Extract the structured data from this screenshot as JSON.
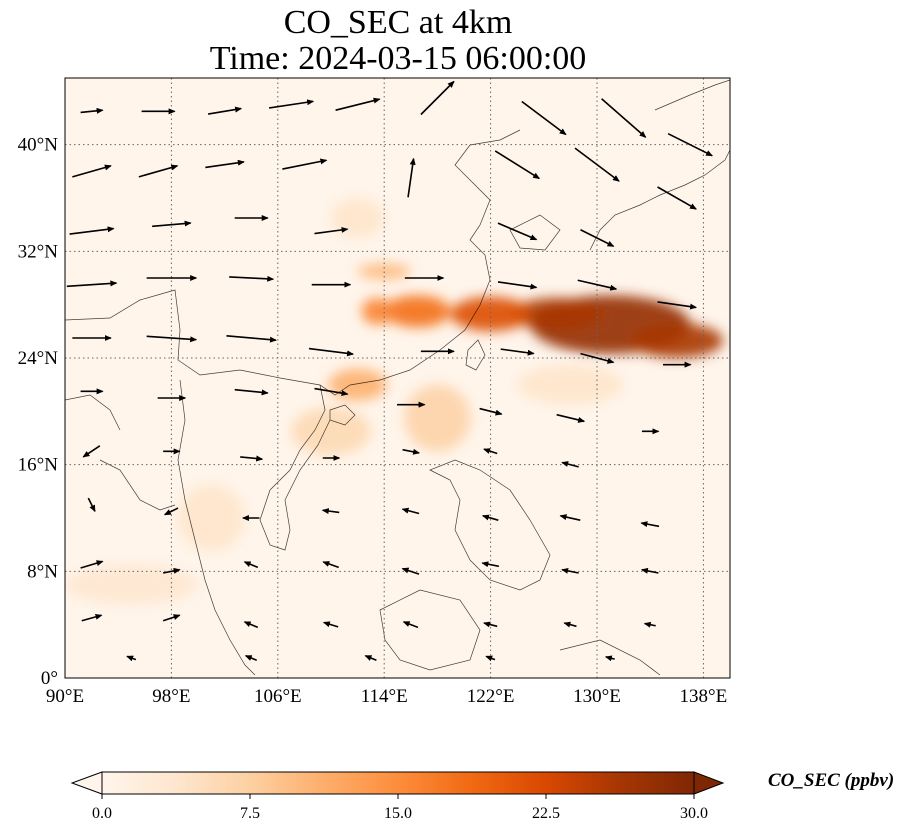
{
  "title": {
    "line1": "CO_SEC at 4km",
    "line2": "Time: 2024-03-15 06:00:00"
  },
  "map": {
    "extent": {
      "lon_min": 90,
      "lon_max": 140,
      "lat_min": 0,
      "lat_max": 45
    },
    "lon_ticks": [
      {
        "value": 90,
        "label": "90°E"
      },
      {
        "value": 98,
        "label": "98°E"
      },
      {
        "value": 106,
        "label": "106°E"
      },
      {
        "value": 114,
        "label": "114°E"
      },
      {
        "value": 122,
        "label": "122°E"
      },
      {
        "value": 130,
        "label": "130°E"
      },
      {
        "value": 138,
        "label": "138°E"
      }
    ],
    "lat_ticks": [
      {
        "value": 0,
        "label": "0°"
      },
      {
        "value": 8,
        "label": "8°N"
      },
      {
        "value": 16,
        "label": "16°N"
      },
      {
        "value": 24,
        "label": "24°N"
      },
      {
        "value": 32,
        "label": "32°N"
      },
      {
        "value": 40,
        "label": "40°N"
      }
    ],
    "gridlines": "dotted",
    "background_color": "#fff5eb",
    "concentration_blobs": [
      {
        "lon": 131,
        "lat": 26.5,
        "rlon": 6,
        "rlat": 2.2,
        "value": 28
      },
      {
        "lon": 127,
        "lat": 27.3,
        "rlon": 3.5,
        "rlat": 1.2,
        "value": 26
      },
      {
        "lon": 136,
        "lat": 25.3,
        "rlon": 3.5,
        "rlat": 1.3,
        "value": 26
      },
      {
        "lon": 122,
        "lat": 27.3,
        "rlon": 3,
        "rlat": 1.3,
        "value": 22
      },
      {
        "lon": 116.5,
        "lat": 27.5,
        "rlon": 2.5,
        "rlat": 1.2,
        "value": 18
      },
      {
        "lon": 113.5,
        "lat": 27.5,
        "rlon": 1.2,
        "rlat": 1.0,
        "value": 16
      },
      {
        "lon": 114,
        "lat": 30.5,
        "rlon": 2,
        "rlat": 0.6,
        "value": 10
      },
      {
        "lon": 112,
        "lat": 22,
        "rlon": 2.2,
        "rlat": 1.2,
        "value": 11
      },
      {
        "lon": 118,
        "lat": 19.5,
        "rlon": 2.5,
        "rlat": 2.5,
        "value": 7
      },
      {
        "lon": 110,
        "lat": 18.5,
        "rlon": 3,
        "rlat": 1.8,
        "value": 6
      },
      {
        "lon": 112,
        "lat": 34.5,
        "rlon": 2,
        "rlat": 1.5,
        "value": 4
      },
      {
        "lon": 101,
        "lat": 12,
        "rlon": 2.5,
        "rlat": 2.5,
        "value": 4
      },
      {
        "lon": 95,
        "lat": 7,
        "rlon": 5,
        "rlat": 1.5,
        "value": 3.5
      },
      {
        "lon": 128,
        "lat": 22,
        "rlon": 4,
        "rlat": 1.5,
        "value": 4
      }
    ],
    "wind_vectors": [
      {
        "lon": 92,
        "lat": 42.5,
        "u": 2,
        "v": 0.2
      },
      {
        "lon": 97,
        "lat": 42.5,
        "u": 3,
        "v": 0
      },
      {
        "lon": 102,
        "lat": 42.5,
        "u": 3,
        "v": 0.5
      },
      {
        "lon": 107,
        "lat": 43,
        "u": 4,
        "v": 0.6
      },
      {
        "lon": 112,
        "lat": 43,
        "u": 4,
        "v": 1
      },
      {
        "lon": 118,
        "lat": 43.5,
        "u": 3,
        "v": 3
      },
      {
        "lon": 126,
        "lat": 42,
        "u": 4,
        "v": -3
      },
      {
        "lon": 132,
        "lat": 42,
        "u": 4,
        "v": -3.5
      },
      {
        "lon": 137,
        "lat": 40,
        "u": 4,
        "v": -2
      },
      {
        "lon": 92,
        "lat": 38,
        "u": 3.5,
        "v": 1
      },
      {
        "lon": 97,
        "lat": 38,
        "u": 3.5,
        "v": 1
      },
      {
        "lon": 102,
        "lat": 38.5,
        "u": 3.5,
        "v": 0.5
      },
      {
        "lon": 108,
        "lat": 38.5,
        "u": 4,
        "v": 0.8
      },
      {
        "lon": 116,
        "lat": 37.5,
        "u": 0.5,
        "v": 3.5
      },
      {
        "lon": 124,
        "lat": 38.5,
        "u": 4,
        "v": -2.5
      },
      {
        "lon": 130,
        "lat": 38.5,
        "u": 4,
        "v": -3
      },
      {
        "lon": 136,
        "lat": 36,
        "u": 3.5,
        "v": -2
      },
      {
        "lon": 92,
        "lat": 33.5,
        "u": 4,
        "v": 0.5
      },
      {
        "lon": 98,
        "lat": 34,
        "u": 3.5,
        "v": 0.3
      },
      {
        "lon": 104,
        "lat": 34.5,
        "u": 3,
        "v": 0
      },
      {
        "lon": 110,
        "lat": 33.5,
        "u": 3,
        "v": 0.4
      },
      {
        "lon": 124,
        "lat": 33.5,
        "u": 3.5,
        "v": -1.5
      },
      {
        "lon": 130,
        "lat": 33,
        "u": 3,
        "v": -1.5
      },
      {
        "lon": 92,
        "lat": 29.5,
        "u": 4.5,
        "v": 0.3
      },
      {
        "lon": 98,
        "lat": 30,
        "u": 4.5,
        "v": 0
      },
      {
        "lon": 104,
        "lat": 30,
        "u": 4,
        "v": -0.2
      },
      {
        "lon": 110,
        "lat": 29.5,
        "u": 3.5,
        "v": 0
      },
      {
        "lon": 117,
        "lat": 30,
        "u": 3.5,
        "v": 0
      },
      {
        "lon": 124,
        "lat": 29.5,
        "u": 3.5,
        "v": -0.5
      },
      {
        "lon": 130,
        "lat": 29.5,
        "u": 3.5,
        "v": -0.8
      },
      {
        "lon": 136,
        "lat": 28,
        "u": 3.5,
        "v": -0.5
      },
      {
        "lon": 92,
        "lat": 25.5,
        "u": 3.5,
        "v": 0
      },
      {
        "lon": 98,
        "lat": 25.5,
        "u": 4.5,
        "v": -0.3
      },
      {
        "lon": 104,
        "lat": 25.5,
        "u": 4.5,
        "v": -0.4
      },
      {
        "lon": 110,
        "lat": 24.5,
        "u": 4,
        "v": -0.5
      },
      {
        "lon": 118,
        "lat": 24.5,
        "u": 3,
        "v": 0
      },
      {
        "lon": 124,
        "lat": 24.5,
        "u": 3,
        "v": -0.4
      },
      {
        "lon": 130,
        "lat": 24,
        "u": 3,
        "v": -0.8
      },
      {
        "lon": 136,
        "lat": 23.5,
        "u": 2.5,
        "v": 0
      },
      {
        "lon": 92,
        "lat": 21.5,
        "u": 2,
        "v": 0
      },
      {
        "lon": 98,
        "lat": 21,
        "u": 2.5,
        "v": 0
      },
      {
        "lon": 104,
        "lat": 21.5,
        "u": 3,
        "v": -0.3
      },
      {
        "lon": 110,
        "lat": 21.5,
        "u": 3,
        "v": -0.5
      },
      {
        "lon": 116,
        "lat": 20.5,
        "u": 2.5,
        "v": 0
      },
      {
        "lon": 122,
        "lat": 20,
        "u": 2,
        "v": -0.5
      },
      {
        "lon": 128,
        "lat": 19.5,
        "u": 2.5,
        "v": -0.6
      },
      {
        "lon": 134,
        "lat": 18.5,
        "u": 1.5,
        "v": 0
      },
      {
        "lon": 92,
        "lat": 17,
        "u": -1.5,
        "v": -1
      },
      {
        "lon": 98,
        "lat": 17,
        "u": 1.5,
        "v": 0
      },
      {
        "lon": 104,
        "lat": 16.5,
        "u": 2,
        "v": -0.2
      },
      {
        "lon": 110,
        "lat": 16.5,
        "u": 1.5,
        "v": 0
      },
      {
        "lon": 116,
        "lat": 17,
        "u": 1.5,
        "v": -0.3
      },
      {
        "lon": 122,
        "lat": 17,
        "u": -1.2,
        "v": 0.4
      },
      {
        "lon": 128,
        "lat": 16,
        "u": -1.5,
        "v": 0.4
      },
      {
        "lon": 92,
        "lat": 13,
        "u": 0.6,
        "v": -1.2
      },
      {
        "lon": 98,
        "lat": 12.5,
        "u": -1.2,
        "v": -0.6
      },
      {
        "lon": 104,
        "lat": 12,
        "u": -1.5,
        "v": 0
      },
      {
        "lon": 110,
        "lat": 12.5,
        "u": -1.5,
        "v": 0.2
      },
      {
        "lon": 116,
        "lat": 12.5,
        "u": -1.5,
        "v": 0.4
      },
      {
        "lon": 122,
        "lat": 12,
        "u": -1.4,
        "v": 0.4
      },
      {
        "lon": 128,
        "lat": 12,
        "u": -1.8,
        "v": 0.4
      },
      {
        "lon": 134,
        "lat": 11.5,
        "u": -1.6,
        "v": 0.3
      },
      {
        "lon": 92,
        "lat": 8.5,
        "u": 2,
        "v": 0.6
      },
      {
        "lon": 98,
        "lat": 8,
        "u": 1.5,
        "v": 0.3
      },
      {
        "lon": 104,
        "lat": 8.5,
        "u": -1.2,
        "v": 0.5
      },
      {
        "lon": 110,
        "lat": 8.5,
        "u": -1.4,
        "v": 0.5
      },
      {
        "lon": 116,
        "lat": 8,
        "u": -1.5,
        "v": 0.5
      },
      {
        "lon": 122,
        "lat": 8.5,
        "u": -1.5,
        "v": 0.3
      },
      {
        "lon": 128,
        "lat": 8,
        "u": -1.5,
        "v": 0.3
      },
      {
        "lon": 134,
        "lat": 8,
        "u": -1.5,
        "v": 0.3
      },
      {
        "lon": 92,
        "lat": 4.5,
        "u": 1.8,
        "v": 0.5
      },
      {
        "lon": 98,
        "lat": 4.5,
        "u": 1.5,
        "v": 0.5
      },
      {
        "lon": 104,
        "lat": 4,
        "u": -1.2,
        "v": 0.5
      },
      {
        "lon": 110,
        "lat": 4,
        "u": -1.3,
        "v": 0.4
      },
      {
        "lon": 116,
        "lat": 4,
        "u": -1.3,
        "v": 0.5
      },
      {
        "lon": 122,
        "lat": 4,
        "u": -1.2,
        "v": 0.3
      },
      {
        "lon": 128,
        "lat": 4,
        "u": -1.1,
        "v": 0.3
      },
      {
        "lon": 134,
        "lat": 4,
        "u": -1,
        "v": 0.2
      },
      {
        "lon": 95,
        "lat": 1.5,
        "u": -0.8,
        "v": 0.3
      },
      {
        "lon": 104,
        "lat": 1.5,
        "u": -1,
        "v": 0.4
      },
      {
        "lon": 113,
        "lat": 1.5,
        "u": -1,
        "v": 0.4
      },
      {
        "lon": 122,
        "lat": 1.5,
        "u": -0.8,
        "v": 0.3
      },
      {
        "lon": 131,
        "lat": 1.5,
        "u": -0.8,
        "v": 0.2
      }
    ]
  },
  "colorbar": {
    "label": "CO_SEC (ppbv)",
    "min": 0,
    "max": 30,
    "colors": [
      "#fff5eb",
      "#fee6ce",
      "#fdd0a2",
      "#fdae6b",
      "#fd8d3c",
      "#f16913",
      "#d94801",
      "#a63603",
      "#7f2704"
    ],
    "ticks": [
      {
        "value": 0,
        "label": "0.0"
      },
      {
        "value": 7.5,
        "label": "7.5"
      },
      {
        "value": 15,
        "label": "15.0"
      },
      {
        "value": 22.5,
        "label": "22.5"
      },
      {
        "value": 30,
        "label": "30.0"
      }
    ],
    "extend": "both"
  }
}
